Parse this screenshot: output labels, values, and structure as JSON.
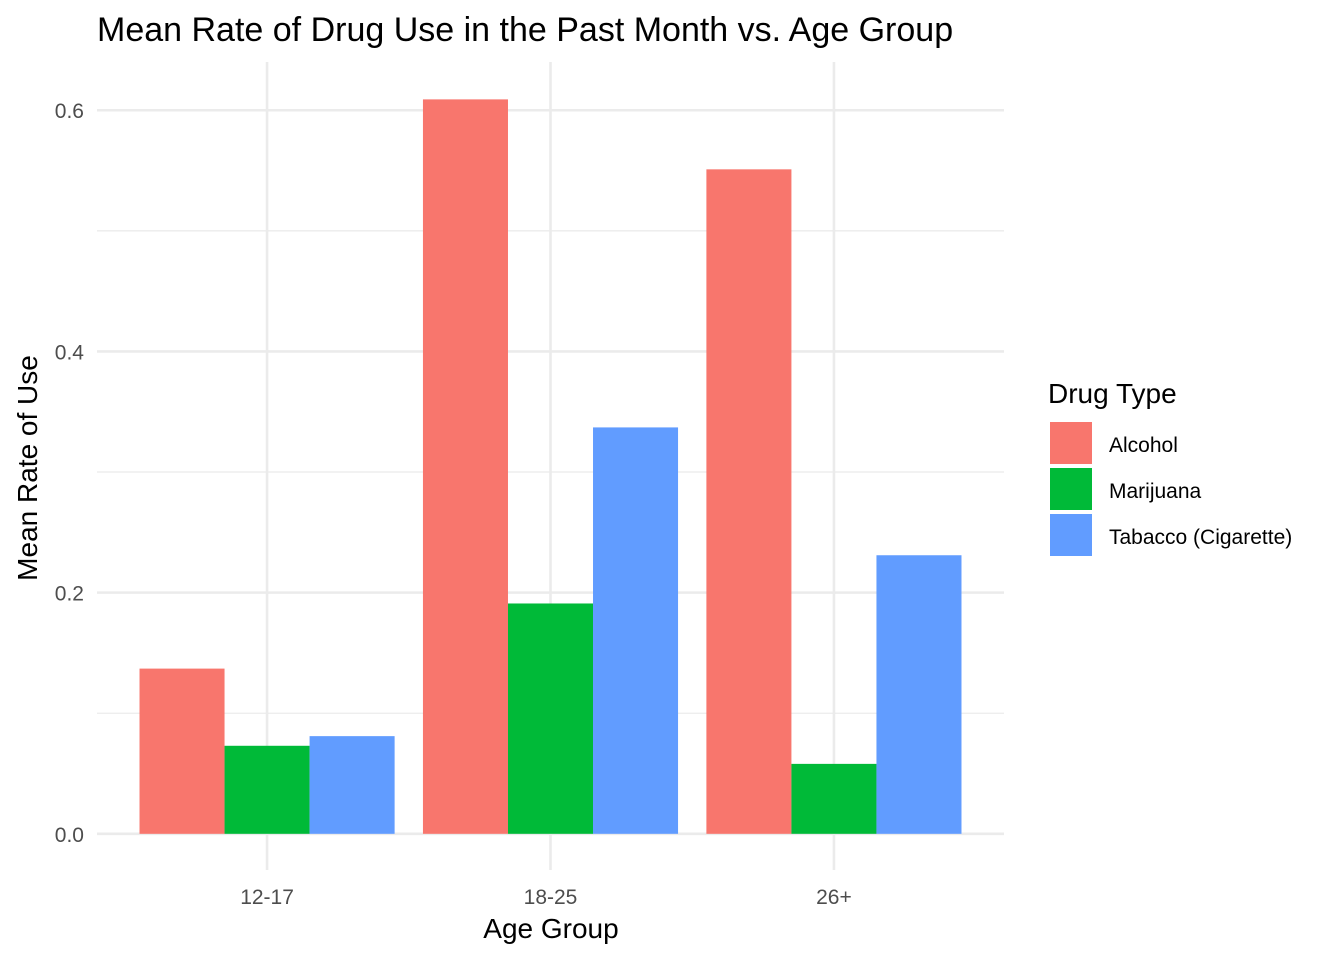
{
  "chart_data": {
    "type": "bar",
    "title": "Mean Rate of Drug Use in the Past Month vs. Age Group",
    "xlabel": "Age Group",
    "ylabel": "Mean Rate of Use",
    "categories": [
      "12-17",
      "18-25",
      "26+"
    ],
    "series": [
      {
        "name": "Alcohol",
        "color": "#F8766D",
        "values": [
          0.137,
          0.609,
          0.551
        ]
      },
      {
        "name": "Marijuana",
        "color": "#00BA38",
        "values": [
          0.073,
          0.191,
          0.058
        ]
      },
      {
        "name": "Tabacco (Cigarette)",
        "color": "#619CFF",
        "values": [
          0.081,
          0.337,
          0.231
        ]
      }
    ],
    "ylim": [
      -0.03,
      0.64
    ],
    "yticks": [
      0.0,
      0.2,
      0.4,
      0.6
    ],
    "ytick_labels": [
      "0.0",
      "0.2",
      "0.4",
      "0.6"
    ],
    "grid": true,
    "legend": {
      "title": "Drug Type",
      "position": "right"
    }
  }
}
